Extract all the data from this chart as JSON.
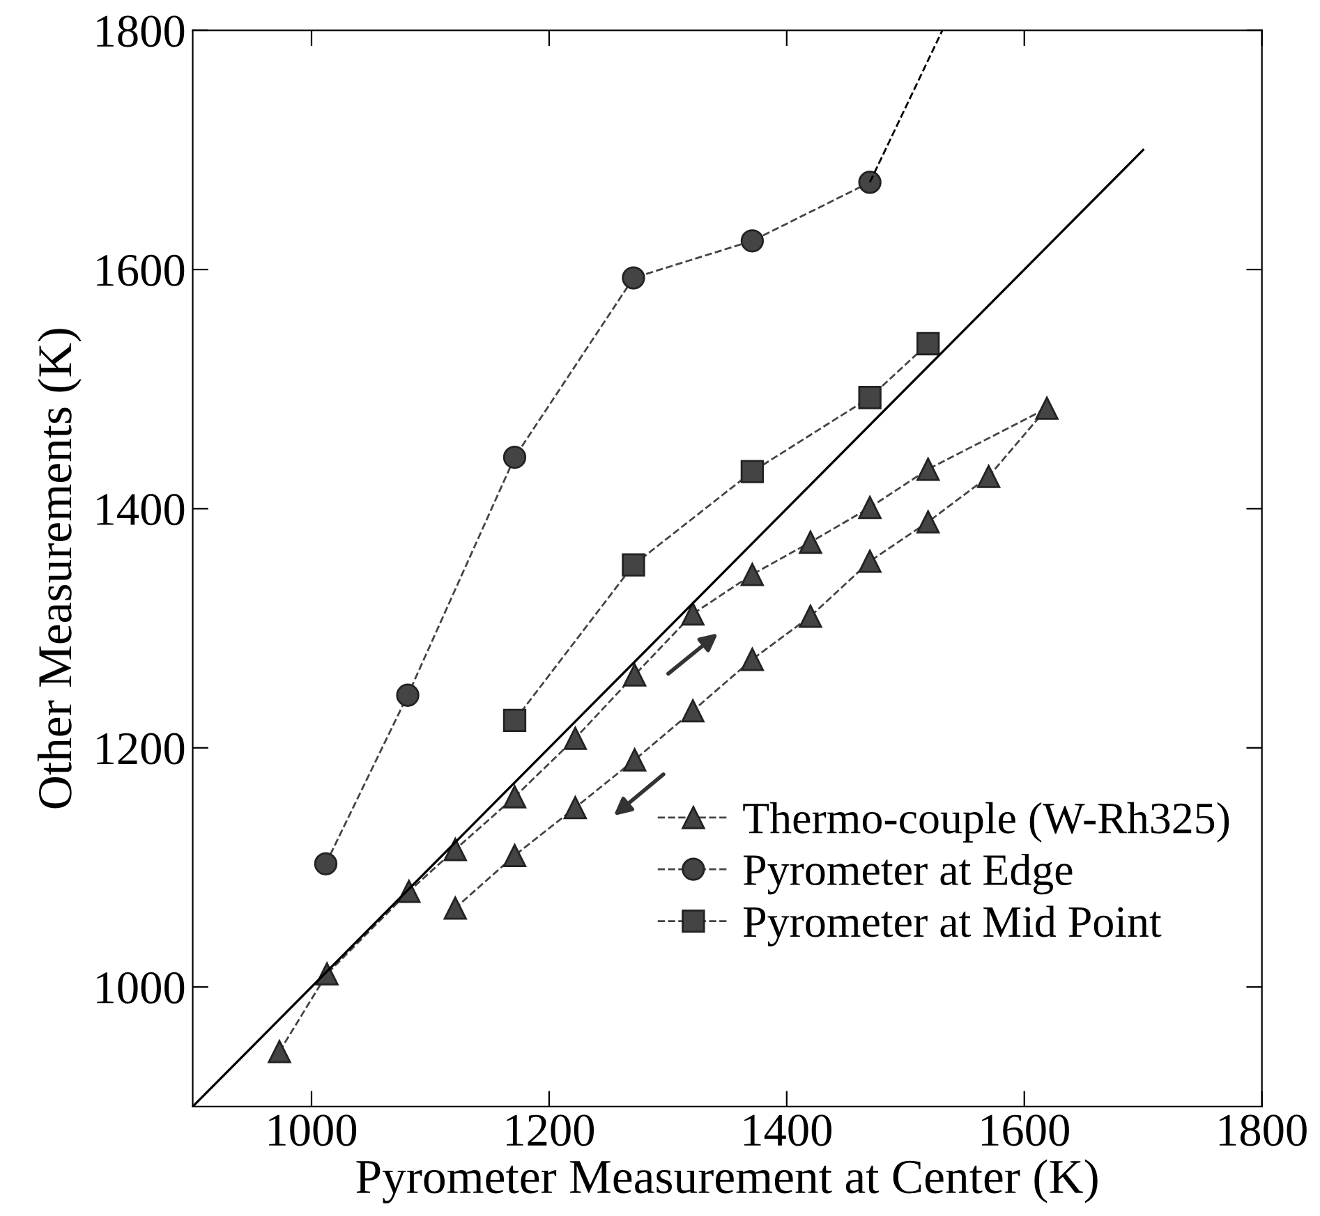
{
  "chart_data": {
    "type": "line",
    "xlabel": "Pyrometer Measurement at Center (K)",
    "ylabel": "Other Measurements (K)",
    "xlim": [
      900,
      1800
    ],
    "ylim": [
      900,
      1800
    ],
    "xticks": [
      1000,
      1200,
      1400,
      1600,
      1800
    ],
    "yticks": [
      1000,
      1200,
      1400,
      1600,
      1800
    ],
    "grid": false,
    "legend": "bottom right",
    "line_style": "dashed",
    "series": [
      {
        "name": "Thermo-couple (W-Rh325)",
        "color": "#444444",
        "marker": "triangle",
        "x": [
          973,
          1013,
          1082,
          1121,
          1171,
          1222,
          1272,
          1321,
          1371,
          1420,
          1470,
          1519,
          1619,
          1570,
          1519,
          1470,
          1420,
          1371,
          1321,
          1272,
          1222,
          1171,
          1121
        ],
        "values": [
          946,
          1011,
          1080,
          1115,
          1159,
          1208,
          1261,
          1312,
          1345,
          1372,
          1401,
          1433,
          1484,
          1427,
          1389,
          1356,
          1310,
          1274,
          1231,
          1190,
          1150,
          1110,
          1066
        ]
      },
      {
        "name": "Pyrometer at Edge",
        "color": "#444444",
        "marker": "circle",
        "x": [
          1012,
          1081,
          1171,
          1271,
          1371,
          1470
        ],
        "values": [
          1103,
          1244,
          1443,
          1593,
          1624,
          1673
        ]
      },
      {
        "name": "Pyrometer at Mid Point",
        "color": "#444444",
        "marker": "square",
        "x": [
          1171,
          1271,
          1371,
          1470,
          1519
        ],
        "values": [
          1223,
          1353,
          1431,
          1493,
          1538
        ]
      },
      {
        "color": "#000000",
        "marker": "none",
        "line_style": "dashed",
        "x": [
          1470,
          1531
        ],
        "values": [
          1673,
          1800
        ]
      },
      {
        "color": "#000000",
        "marker": "none",
        "line_style": "solid",
        "x": [
          900,
          1700
        ],
        "values": [
          900,
          1700
        ]
      }
    ]
  }
}
